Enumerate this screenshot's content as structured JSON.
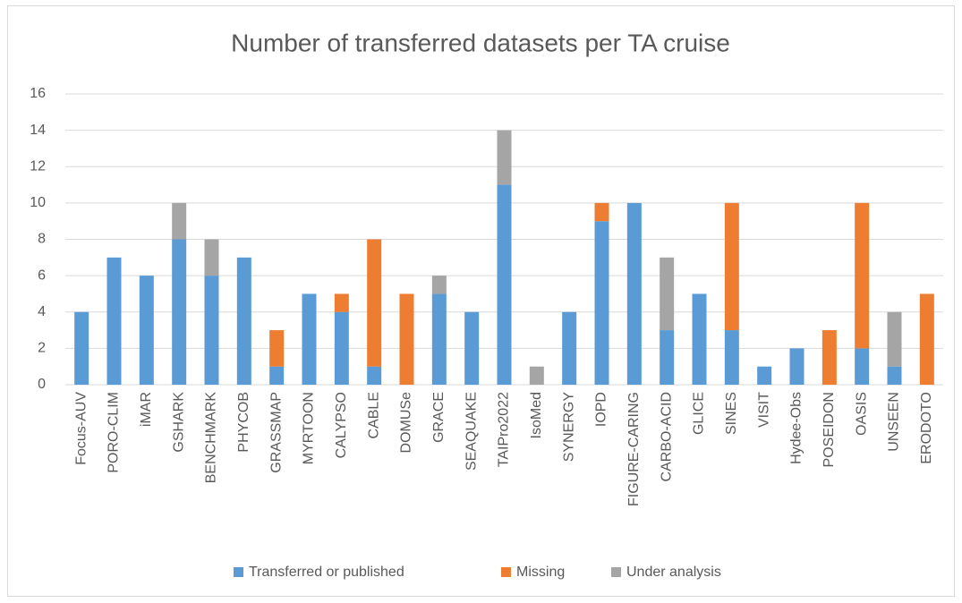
{
  "chart_data": {
    "type": "stacked_bar",
    "title": "Number of transferred datasets per TA cruise",
    "categories": [
      "Focus-AUV",
      "PORO-CLIM",
      "iMAR",
      "GSHARK",
      "BENCHMARK",
      "PHYCOB",
      "GRASSMAP",
      "MYRTOON",
      "CALYPSO",
      "CABLE",
      "DOMUSe",
      "GRACE",
      "SEAQUAKE",
      "TAIPro2022",
      "IsoMed",
      "SYNERGY",
      "IOPD",
      "FIGURE-CARING",
      "CARBO-ACID",
      "GLICE",
      "SINES",
      "VISIT",
      "Hydee-Obs",
      "POSEIDON",
      "OASIS",
      "UNSEEN",
      "ERODOTO"
    ],
    "series": [
      {
        "name": "Transferred or published",
        "color": "#5b9bd5",
        "values": [
          4,
          7,
          6,
          8,
          6,
          7,
          1,
          5,
          4,
          1,
          0,
          5,
          4,
          11,
          0,
          4,
          9,
          10,
          3,
          5,
          3,
          1,
          2,
          0,
          2,
          1,
          0
        ]
      },
      {
        "name": "Missing",
        "color": "#ed7d31",
        "values": [
          0,
          0,
          0,
          0,
          0,
          0,
          2,
          0,
          1,
          7,
          5,
          0,
          0,
          0,
          0,
          0,
          1,
          0,
          0,
          0,
          7,
          0,
          0,
          3,
          8,
          0,
          5
        ]
      },
      {
        "name": "Under analysis",
        "color": "#a5a5a5",
        "values": [
          0,
          0,
          0,
          2,
          2,
          0,
          0,
          0,
          0,
          0,
          0,
          1,
          0,
          3,
          1,
          0,
          0,
          0,
          4,
          0,
          0,
          0,
          0,
          0,
          0,
          3,
          0
        ]
      }
    ],
    "ylim": [
      0,
      16
    ],
    "yticks": [
      0,
      2,
      4,
      6,
      8,
      10,
      12,
      14,
      16
    ],
    "grid": true,
    "legend": "bottom"
  }
}
